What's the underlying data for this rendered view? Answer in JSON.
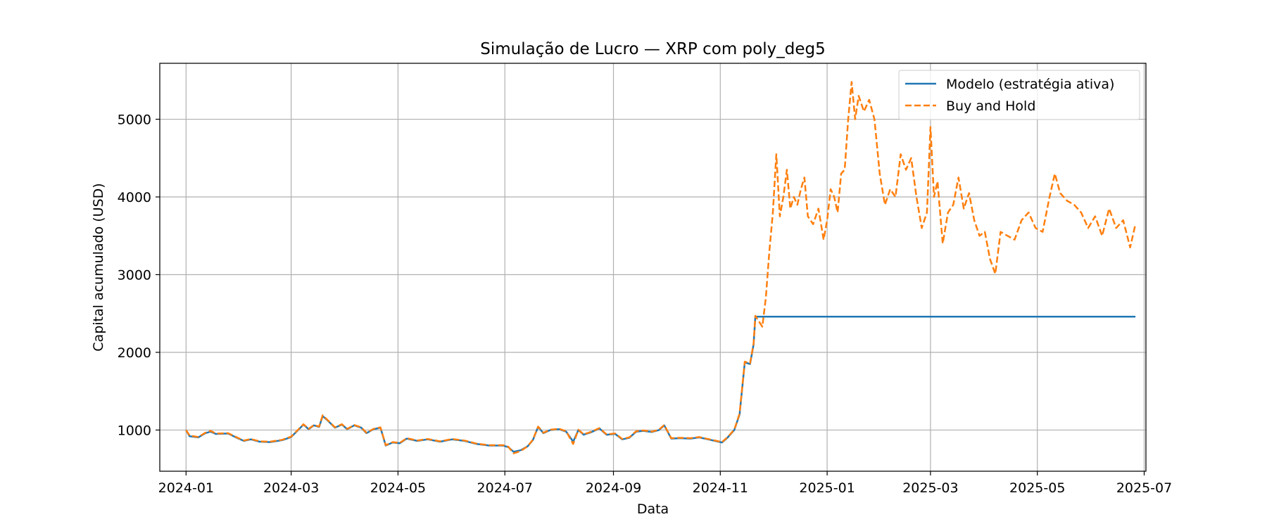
{
  "chart_data": {
    "type": "line",
    "title": "Simulação de Lucro — XRP com poly_deg5",
    "xlabel": "Data",
    "ylabel": "Capital acumulado (USD)",
    "xlim": [
      "2023-12-17",
      "2025-07-02"
    ],
    "ylim": [
      470,
      5720
    ],
    "grid": true,
    "legend_position": "top-right",
    "x_ticks": [
      "2024-01",
      "2024-03",
      "2024-05",
      "2024-07",
      "2024-09",
      "2024-11",
      "2025-01",
      "2025-03",
      "2025-05",
      "2025-07"
    ],
    "y_ticks": [
      "1000",
      "2000",
      "3000",
      "4000",
      "5000"
    ],
    "series": [
      {
        "name": "Modelo (estratégia ativa)",
        "color": "#1f77b4",
        "style": "solid",
        "points": [
          [
            "2024-01-01",
            1000
          ],
          [
            "2024-01-03",
            920
          ],
          [
            "2024-01-08",
            905
          ],
          [
            "2024-01-12",
            960
          ],
          [
            "2024-01-15",
            980
          ],
          [
            "2024-01-18",
            950
          ],
          [
            "2024-01-25",
            955
          ],
          [
            "2024-01-30",
            900
          ],
          [
            "2024-02-03",
            860
          ],
          [
            "2024-02-07",
            880
          ],
          [
            "2024-02-12",
            850
          ],
          [
            "2024-02-18",
            845
          ],
          [
            "2024-02-25",
            870
          ],
          [
            "2024-03-01",
            910
          ],
          [
            "2024-03-05",
            1000
          ],
          [
            "2024-03-08",
            1070
          ],
          [
            "2024-03-11",
            1010
          ],
          [
            "2024-03-14",
            1060
          ],
          [
            "2024-03-17",
            1040
          ],
          [
            "2024-03-19",
            1180
          ],
          [
            "2024-03-22",
            1120
          ],
          [
            "2024-03-26",
            1030
          ],
          [
            "2024-03-30",
            1070
          ],
          [
            "2024-04-02",
            1010
          ],
          [
            "2024-04-06",
            1060
          ],
          [
            "2024-04-10",
            1030
          ],
          [
            "2024-04-13",
            960
          ],
          [
            "2024-04-17",
            1010
          ],
          [
            "2024-04-21",
            1030
          ],
          [
            "2024-04-24",
            800
          ],
          [
            "2024-04-28",
            840
          ],
          [
            "2024-05-02",
            830
          ],
          [
            "2024-05-06",
            890
          ],
          [
            "2024-05-12",
            860
          ],
          [
            "2024-05-18",
            880
          ],
          [
            "2024-05-25",
            850
          ],
          [
            "2024-06-01",
            880
          ],
          [
            "2024-06-08",
            860
          ],
          [
            "2024-06-15",
            820
          ],
          [
            "2024-06-22",
            800
          ],
          [
            "2024-06-30",
            800
          ],
          [
            "2024-07-03",
            780
          ],
          [
            "2024-07-06",
            720
          ],
          [
            "2024-07-10",
            740
          ],
          [
            "2024-07-14",
            790
          ],
          [
            "2024-07-17",
            870
          ],
          [
            "2024-07-20",
            1040
          ],
          [
            "2024-07-23",
            960
          ],
          [
            "2024-07-27",
            1000
          ],
          [
            "2024-08-01",
            1010
          ],
          [
            "2024-08-05",
            980
          ],
          [
            "2024-08-09",
            850
          ],
          [
            "2024-08-12",
            1000
          ],
          [
            "2024-08-15",
            940
          ],
          [
            "2024-08-19",
            970
          ],
          [
            "2024-08-24",
            1020
          ],
          [
            "2024-08-28",
            940
          ],
          [
            "2024-09-02",
            950
          ],
          [
            "2024-09-06",
            880
          ],
          [
            "2024-09-10",
            900
          ],
          [
            "2024-09-14",
            980
          ],
          [
            "2024-09-18",
            990
          ],
          [
            "2024-09-23",
            975
          ],
          [
            "2024-09-27",
            1000
          ],
          [
            "2024-09-30",
            1060
          ],
          [
            "2024-10-04",
            890
          ],
          [
            "2024-10-09",
            895
          ],
          [
            "2024-10-15",
            890
          ],
          [
            "2024-10-20",
            905
          ],
          [
            "2024-10-25",
            880
          ],
          [
            "2024-10-29",
            860
          ],
          [
            "2024-11-02",
            840
          ],
          [
            "2024-11-05",
            900
          ],
          [
            "2024-11-09",
            1000
          ],
          [
            "2024-11-12",
            1200
          ],
          [
            "2024-11-15",
            1870
          ],
          [
            "2024-11-18",
            1850
          ],
          [
            "2024-11-20",
            2100
          ],
          [
            "2024-11-21",
            2460
          ],
          [
            "2025-06-26",
            2460
          ]
        ]
      },
      {
        "name": "Buy and Hold",
        "color": "#ff7f0e",
        "style": "dashed",
        "points": [
          [
            "2024-01-01",
            1000
          ],
          [
            "2024-01-03",
            930
          ],
          [
            "2024-01-08",
            910
          ],
          [
            "2024-01-12",
            965
          ],
          [
            "2024-01-15",
            990
          ],
          [
            "2024-01-18",
            955
          ],
          [
            "2024-01-25",
            960
          ],
          [
            "2024-01-30",
            905
          ],
          [
            "2024-02-03",
            865
          ],
          [
            "2024-02-07",
            885
          ],
          [
            "2024-02-12",
            855
          ],
          [
            "2024-02-18",
            850
          ],
          [
            "2024-02-25",
            875
          ],
          [
            "2024-03-01",
            915
          ],
          [
            "2024-03-05",
            1005
          ],
          [
            "2024-03-08",
            1075
          ],
          [
            "2024-03-11",
            1015
          ],
          [
            "2024-03-14",
            1065
          ],
          [
            "2024-03-17",
            1045
          ],
          [
            "2024-03-19",
            1190
          ],
          [
            "2024-03-22",
            1125
          ],
          [
            "2024-03-26",
            1035
          ],
          [
            "2024-03-30",
            1075
          ],
          [
            "2024-04-02",
            1015
          ],
          [
            "2024-04-06",
            1065
          ],
          [
            "2024-04-10",
            1035
          ],
          [
            "2024-04-13",
            965
          ],
          [
            "2024-04-17",
            1015
          ],
          [
            "2024-04-21",
            1035
          ],
          [
            "2024-04-24",
            805
          ],
          [
            "2024-04-28",
            845
          ],
          [
            "2024-05-02",
            835
          ],
          [
            "2024-05-06",
            895
          ],
          [
            "2024-05-12",
            865
          ],
          [
            "2024-05-18",
            885
          ],
          [
            "2024-05-25",
            855
          ],
          [
            "2024-06-01",
            885
          ],
          [
            "2024-06-08",
            865
          ],
          [
            "2024-06-15",
            825
          ],
          [
            "2024-06-22",
            805
          ],
          [
            "2024-06-30",
            805
          ],
          [
            "2024-07-03",
            785
          ],
          [
            "2024-07-06",
            700
          ],
          [
            "2024-07-10",
            730
          ],
          [
            "2024-07-14",
            790
          ],
          [
            "2024-07-17",
            875
          ],
          [
            "2024-07-20",
            1045
          ],
          [
            "2024-07-23",
            965
          ],
          [
            "2024-07-27",
            1005
          ],
          [
            "2024-08-01",
            1015
          ],
          [
            "2024-08-05",
            985
          ],
          [
            "2024-08-09",
            820
          ],
          [
            "2024-08-12",
            1005
          ],
          [
            "2024-08-15",
            945
          ],
          [
            "2024-08-19",
            975
          ],
          [
            "2024-08-24",
            1025
          ],
          [
            "2024-08-28",
            945
          ],
          [
            "2024-09-02",
            955
          ],
          [
            "2024-09-06",
            885
          ],
          [
            "2024-09-10",
            905
          ],
          [
            "2024-09-14",
            985
          ],
          [
            "2024-09-18",
            995
          ],
          [
            "2024-09-23",
            980
          ],
          [
            "2024-09-27",
            1005
          ],
          [
            "2024-09-30",
            1065
          ],
          [
            "2024-10-04",
            895
          ],
          [
            "2024-10-09",
            900
          ],
          [
            "2024-10-15",
            895
          ],
          [
            "2024-10-20",
            910
          ],
          [
            "2024-10-25",
            885
          ],
          [
            "2024-10-29",
            865
          ],
          [
            "2024-11-02",
            845
          ],
          [
            "2024-11-05",
            905
          ],
          [
            "2024-11-09",
            1005
          ],
          [
            "2024-11-12",
            1210
          ],
          [
            "2024-11-15",
            1880
          ],
          [
            "2024-11-18",
            1860
          ],
          [
            "2024-11-20",
            2110
          ],
          [
            "2024-11-21",
            2470
          ],
          [
            "2024-11-23",
            2400
          ],
          [
            "2024-11-25",
            2330
          ],
          [
            "2024-11-27",
            2700
          ],
          [
            "2024-11-29",
            3300
          ],
          [
            "2024-12-01",
            3800
          ],
          [
            "2024-12-03",
            4550
          ],
          [
            "2024-12-05",
            3750
          ],
          [
            "2024-12-07",
            4000
          ],
          [
            "2024-12-09",
            4350
          ],
          [
            "2024-12-11",
            3850
          ],
          [
            "2024-12-13",
            4000
          ],
          [
            "2024-12-15",
            3900
          ],
          [
            "2024-12-17",
            4100
          ],
          [
            "2024-12-19",
            4250
          ],
          [
            "2024-12-21",
            3750
          ],
          [
            "2024-12-24",
            3650
          ],
          [
            "2024-12-27",
            3850
          ],
          [
            "2024-12-30",
            3450
          ],
          [
            "2025-01-01",
            3700
          ],
          [
            "2025-01-03",
            4100
          ],
          [
            "2025-01-05",
            4000
          ],
          [
            "2025-01-07",
            3800
          ],
          [
            "2025-01-09",
            4300
          ],
          [
            "2025-01-11",
            4350
          ],
          [
            "2025-01-13",
            5000
          ],
          [
            "2025-01-15",
            5480
          ],
          [
            "2025-01-17",
            5000
          ],
          [
            "2025-01-19",
            5300
          ],
          [
            "2025-01-22",
            5100
          ],
          [
            "2025-01-25",
            5250
          ],
          [
            "2025-01-28",
            5000
          ],
          [
            "2025-01-31",
            4300
          ],
          [
            "2025-02-03",
            3900
          ],
          [
            "2025-02-06",
            4100
          ],
          [
            "2025-02-09",
            4000
          ],
          [
            "2025-02-12",
            4550
          ],
          [
            "2025-02-15",
            4350
          ],
          [
            "2025-02-18",
            4500
          ],
          [
            "2025-02-21",
            4000
          ],
          [
            "2025-02-24",
            3600
          ],
          [
            "2025-02-27",
            3800
          ],
          [
            "2025-03-01",
            4900
          ],
          [
            "2025-03-03",
            4000
          ],
          [
            "2025-03-05",
            4200
          ],
          [
            "2025-03-08",
            3400
          ],
          [
            "2025-03-11",
            3800
          ],
          [
            "2025-03-14",
            3900
          ],
          [
            "2025-03-17",
            4250
          ],
          [
            "2025-03-20",
            3850
          ],
          [
            "2025-03-23",
            4050
          ],
          [
            "2025-03-26",
            3700
          ],
          [
            "2025-03-29",
            3500
          ],
          [
            "2025-04-01",
            3550
          ],
          [
            "2025-04-04",
            3200
          ],
          [
            "2025-04-07",
            3010
          ],
          [
            "2025-04-10",
            3550
          ],
          [
            "2025-04-14",
            3500
          ],
          [
            "2025-04-18",
            3450
          ],
          [
            "2025-04-22",
            3700
          ],
          [
            "2025-04-26",
            3800
          ],
          [
            "2025-04-30",
            3600
          ],
          [
            "2025-05-04",
            3550
          ],
          [
            "2025-05-08",
            4000
          ],
          [
            "2025-05-11",
            4300
          ],
          [
            "2025-05-14",
            4050
          ],
          [
            "2025-05-18",
            3950
          ],
          [
            "2025-05-22",
            3900
          ],
          [
            "2025-05-26",
            3800
          ],
          [
            "2025-05-30",
            3600
          ],
          [
            "2025-06-03",
            3750
          ],
          [
            "2025-06-07",
            3500
          ],
          [
            "2025-06-11",
            3850
          ],
          [
            "2025-06-15",
            3600
          ],
          [
            "2025-06-19",
            3700
          ],
          [
            "2025-06-23",
            3350
          ],
          [
            "2025-06-26",
            3650
          ]
        ]
      }
    ]
  }
}
